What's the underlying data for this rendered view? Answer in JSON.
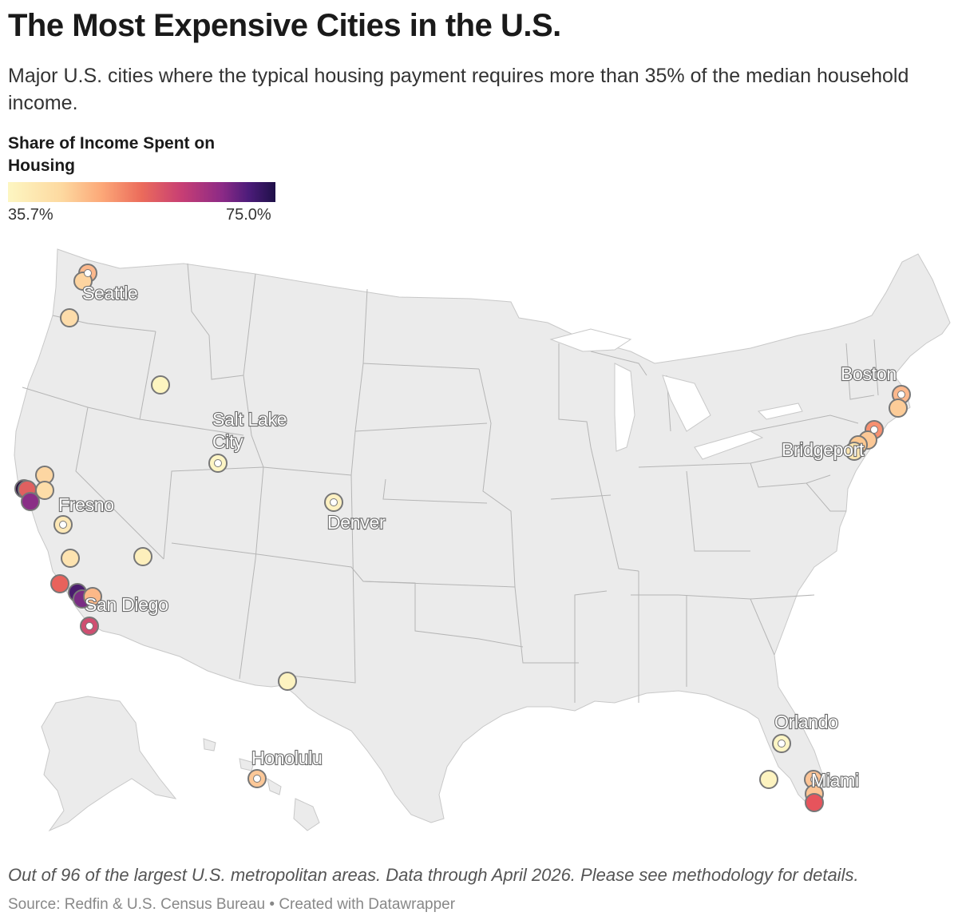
{
  "title": "The Most Expensive Cities in the U.S.",
  "subtitle": "Major U.S. cities where the typical housing payment requires more than 35% of the median household income.",
  "legend": {
    "title": "Share of Income Spent on Housing",
    "min_label": "35.7%",
    "max_label": "75.0%",
    "min_value": 35.7,
    "max_value": 75.0,
    "color_scale": [
      "#fdf6c2",
      "#fdd9a0",
      "#fca878",
      "#eb6b5b",
      "#c73e74",
      "#8c2a86",
      "#4c1c7a",
      "#1f1048"
    ]
  },
  "map": {
    "region": "United States",
    "land_color": "#ebebeb",
    "border_color": "#b5b5b5",
    "labels": [
      "Seattle",
      "Salt Lake City",
      "Fresno",
      "Denver",
      "San Diego",
      "Honolulu",
      "Boston",
      "Bridgeport",
      "Orlando",
      "Miami"
    ]
  },
  "notes": "Out of 96 of the largest U.S. metropolitan areas. Data through April 2026. Please see methodology for details.",
  "source": "Source: Redfin & U.S. Census Bureau • Created with Datawrapper"
}
